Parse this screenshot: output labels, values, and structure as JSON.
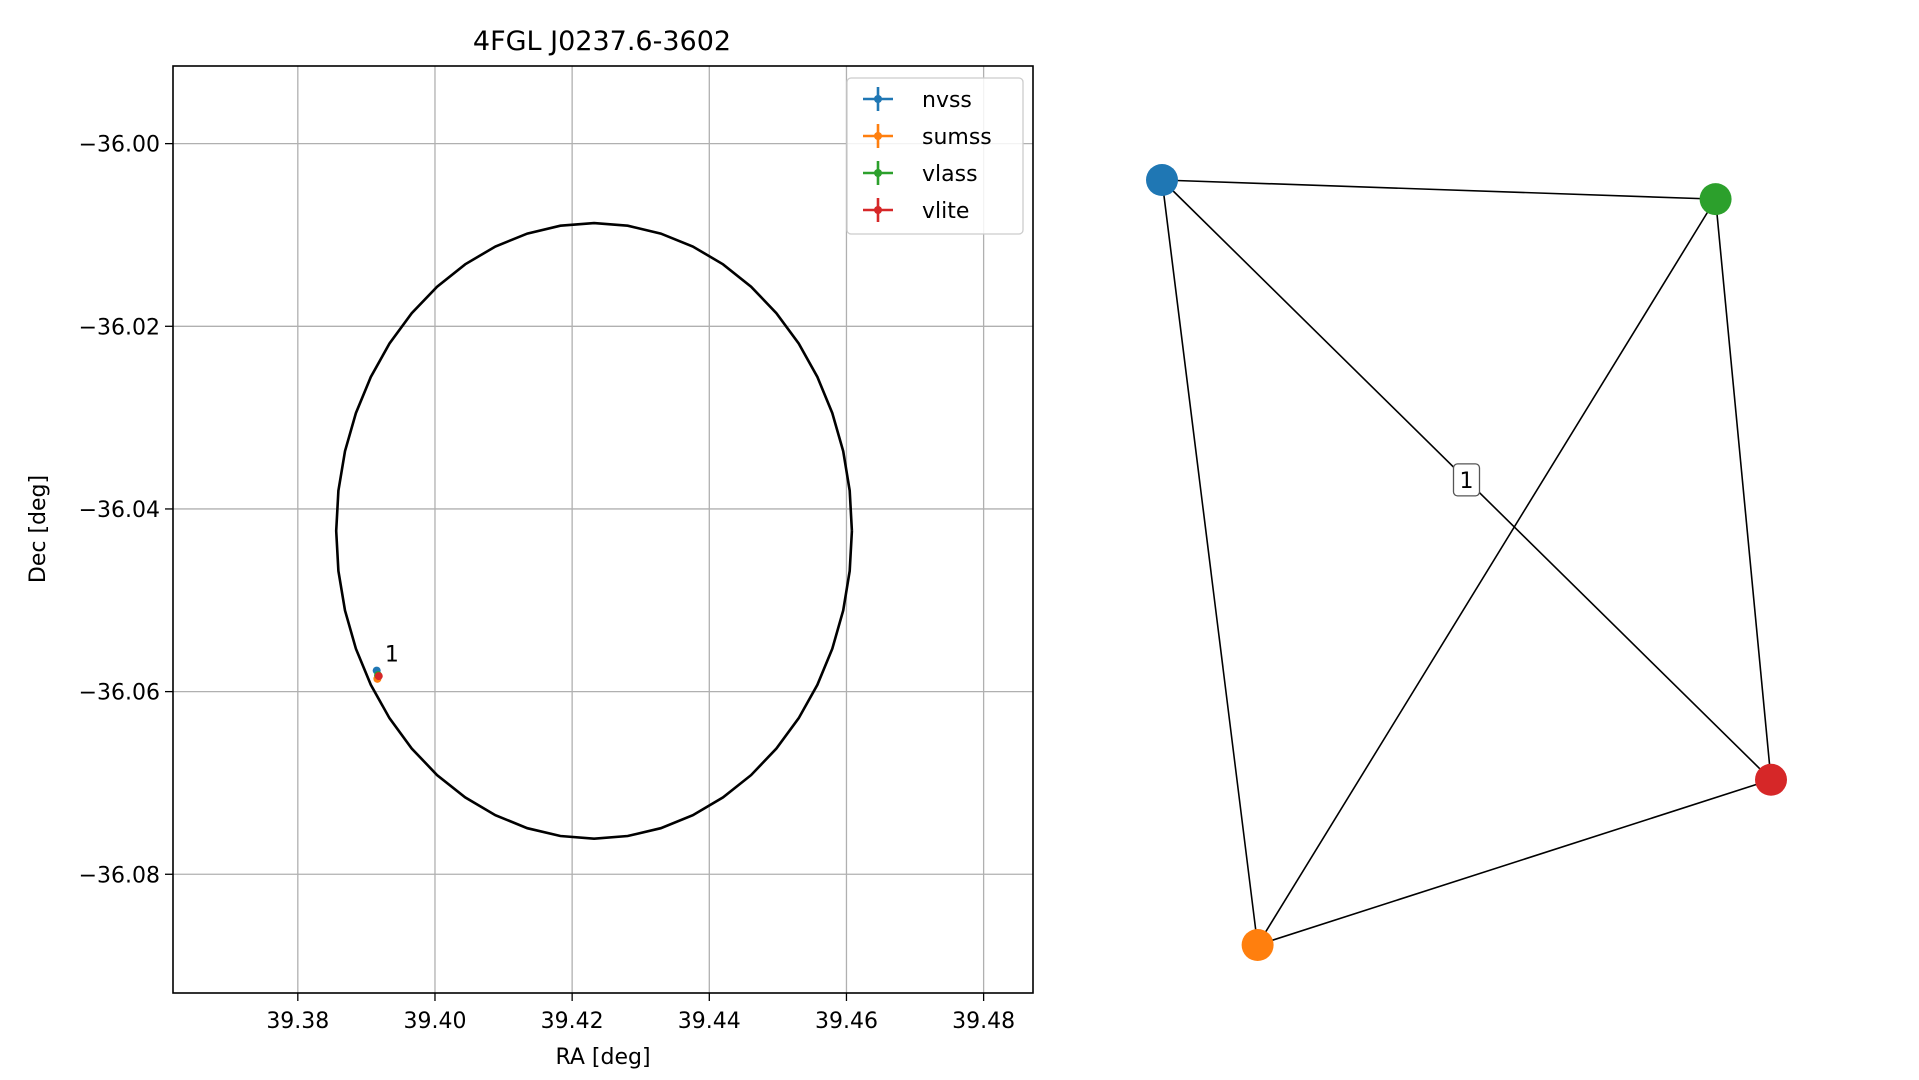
{
  "chart_data": [
    {
      "type": "scatter",
      "title": "4FGL J0237.6-3602",
      "xlabel": "RA [deg]",
      "ylabel": "Dec [deg]",
      "xlim": [
        39.3618,
        39.4872
      ],
      "ylim": [
        -36.093,
        -35.9915
      ],
      "xticks": [
        39.38,
        39.4,
        39.42,
        39.44,
        39.46,
        39.48
      ],
      "xtick_labels": [
        "39.38",
        "39.40",
        "39.42",
        "39.44",
        "39.46",
        "39.48"
      ],
      "yticks": [
        -36.0,
        -36.02,
        -36.04,
        -36.06,
        -36.08
      ],
      "ytick_labels": [
        "−36.00",
        "−36.02",
        "−36.04",
        "−36.06",
        "−36.08"
      ],
      "grid": true,
      "legend_position": "top-right",
      "series": [
        {
          "name": "nvss",
          "color": "#1f77b4",
          "points": [
            {
              "x": 39.3915,
              "y": -36.0577
            }
          ]
        },
        {
          "name": "sumss",
          "color": "#ff7f0e",
          "points": [
            {
              "x": 39.3916,
              "y": -36.0586
            }
          ]
        },
        {
          "name": "vlass",
          "color": "#2ca02c",
          "points": [
            {
              "x": 39.3917,
              "y": -36.0582
            }
          ]
        },
        {
          "name": "vlite",
          "color": "#d62728",
          "points": [
            {
              "x": 39.3918,
              "y": -36.0583
            }
          ]
        }
      ],
      "ellipse": {
        "center_ra": 39.4232,
        "center_dec": -36.0424,
        "semi_ra": 0.0376,
        "semi_dec": 0.0337,
        "color": "#000000"
      },
      "annotations": [
        {
          "text": "1",
          "x": 39.3927,
          "y": -36.0567
        }
      ]
    },
    {
      "type": "graph",
      "nodes": [
        {
          "id": "nvss",
          "color": "#1f77b4",
          "x": 0.0,
          "y": 1.0
        },
        {
          "id": "vlass",
          "color": "#2ca02c",
          "x": 0.909,
          "y": 0.975
        },
        {
          "id": "vlite",
          "color": "#d62728",
          "x": 1.0,
          "y": 0.216
        },
        {
          "id": "sumss",
          "color": "#ff7f0e",
          "x": 0.157,
          "y": 0.0
        }
      ],
      "edges": [
        {
          "source": "nvss",
          "target": "vlass"
        },
        {
          "source": "nvss",
          "target": "vlite"
        },
        {
          "source": "nvss",
          "target": "sumss"
        },
        {
          "source": "vlass",
          "target": "sumss"
        },
        {
          "source": "vlass",
          "target": "vlite"
        },
        {
          "source": "sumss",
          "target": "vlite"
        }
      ],
      "edge_label": "1"
    }
  ]
}
